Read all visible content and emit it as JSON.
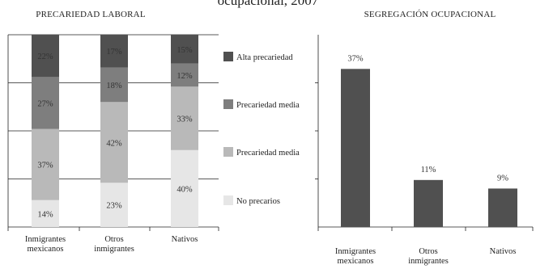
{
  "header": {
    "partial_title": "ocupacional, 2007"
  },
  "chart_data": [
    {
      "type": "stacked-bar",
      "title": "PRECARIEDAD LABORAL",
      "categories": [
        [
          "Inmigrantes",
          "mexicanos"
        ],
        [
          "Otros",
          "inmigrantes"
        ],
        [
          "Nativos"
        ]
      ],
      "ylim": [
        0,
        100
      ],
      "grid": true,
      "legend_position": "right",
      "series": [
        {
          "name": "No precarios",
          "values": [
            14,
            23,
            40
          ],
          "labels": [
            "14%",
            "23%",
            "40%"
          ],
          "color": "#e6e6e6"
        },
        {
          "name": "Precariedad media",
          "values": [
            37,
            42,
            33
          ],
          "labels": [
            "37%",
            "42%",
            "33%"
          ],
          "color": "#b9b9b9"
        },
        {
          "name": "Precariedad media",
          "values": [
            27,
            18,
            12
          ],
          "labels": [
            "27%",
            "18%",
            "12%"
          ],
          "color": "#7e7e7e"
        },
        {
          "name": "Alta precariedad",
          "values": [
            22,
            17,
            15
          ],
          "labels": [
            "22%",
            "17%",
            "15%"
          ],
          "color": "#505050"
        }
      ]
    },
    {
      "type": "bar",
      "title": "SEGREGACIÓN OCUPACIONAL",
      "categories": [
        [
          "Inmigrantes",
          "mexicanos"
        ],
        [
          "Otros",
          "inmigrantes"
        ],
        [
          "Nativos"
        ]
      ],
      "values": [
        37,
        11,
        9
      ],
      "labels": [
        "37%",
        "11%",
        "9%"
      ],
      "ylim": [
        0,
        45
      ],
      "grid": false,
      "color": "#505050"
    }
  ]
}
